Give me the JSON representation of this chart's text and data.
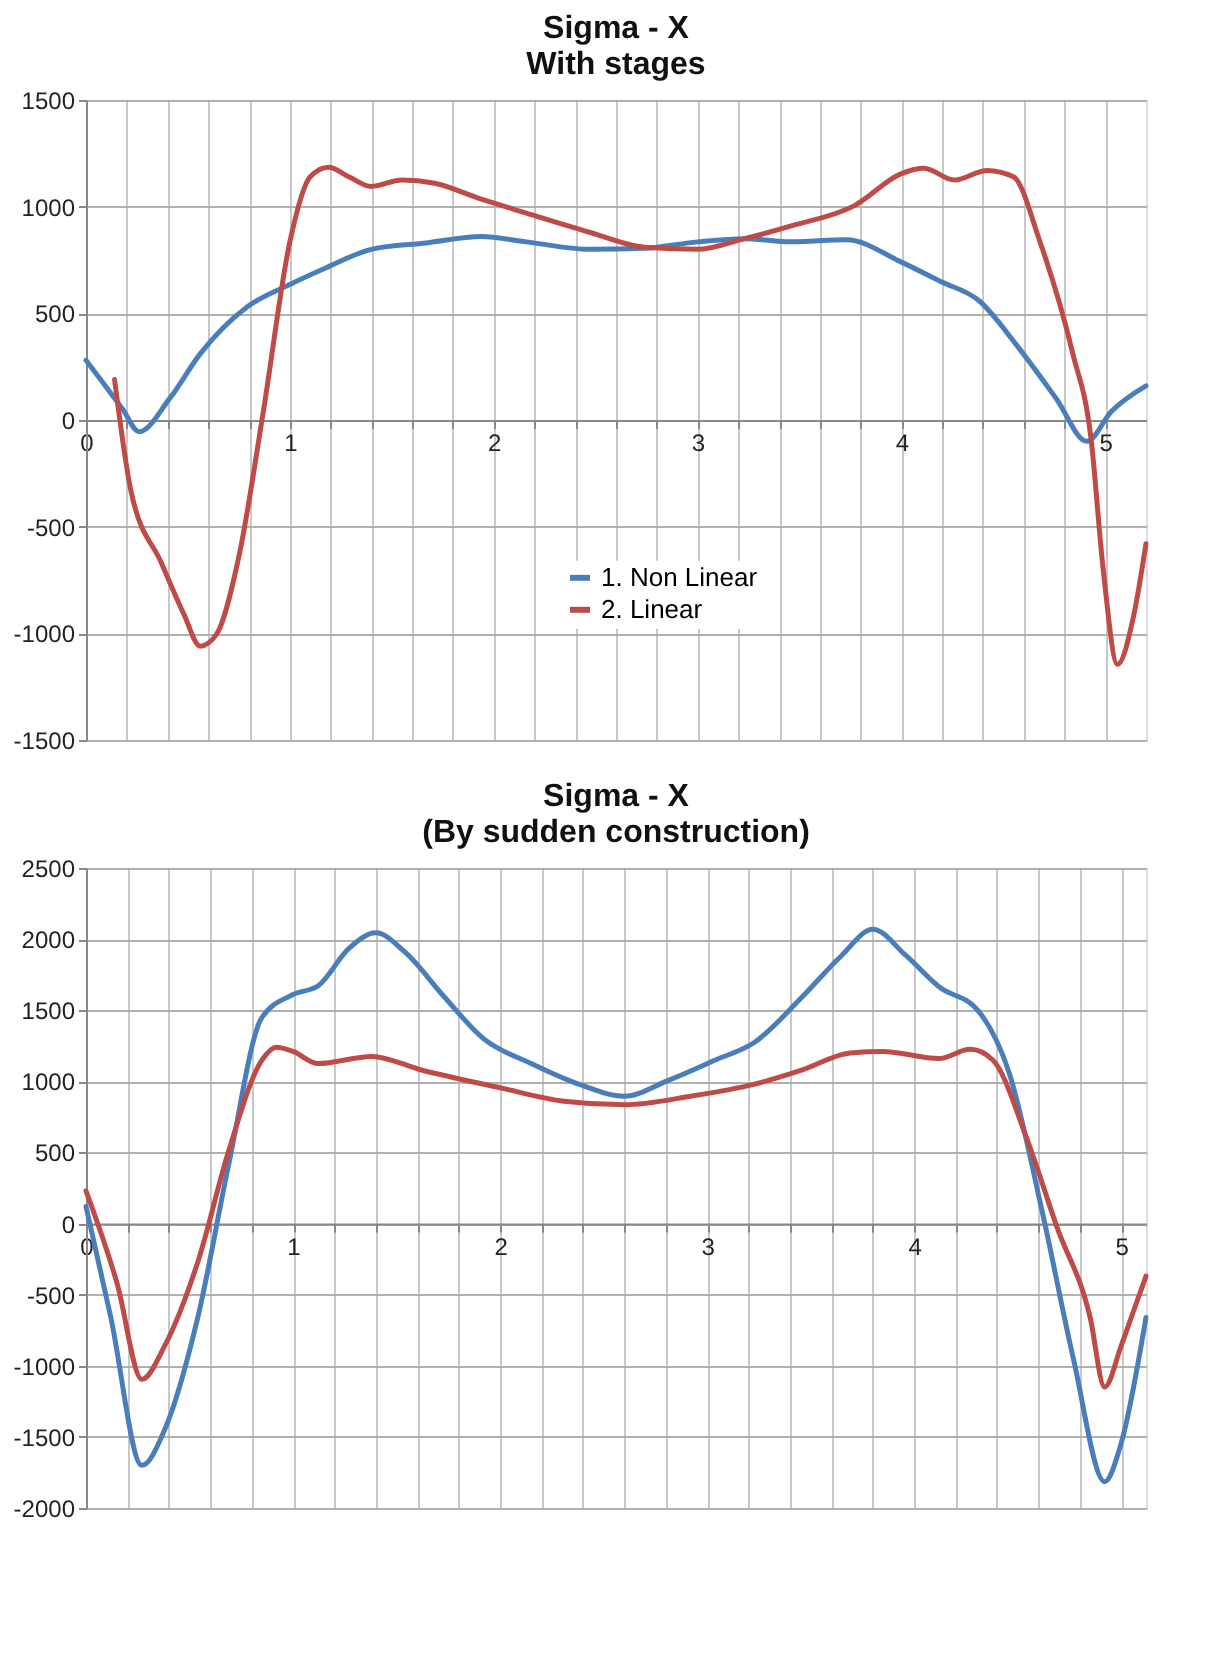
{
  "chart_data": [
    {
      "type": "line",
      "title": [
        "Sigma - X",
        "With stages"
      ],
      "xlim": [
        0,
        5.2
      ],
      "ylim": [
        -1500,
        1500
      ],
      "yticks": [
        -1500,
        -1000,
        -500,
        0,
        500,
        1000,
        1500
      ],
      "xticks": [
        0,
        {
          "value": 0.2,
          "label": null
        },
        {
          "value": 0.4,
          "label": null
        },
        {
          "value": 0.6,
          "label": null
        },
        {
          "value": 0.8,
          "label": null
        },
        1,
        {
          "value": 1.2,
          "label": null
        },
        {
          "value": 1.4,
          "label": null
        },
        {
          "value": 1.6,
          "label": null
        },
        {
          "value": 1.8,
          "label": null
        },
        2,
        {
          "value": 2.2,
          "label": null
        },
        {
          "value": 2.4,
          "label": null
        },
        {
          "value": 2.6,
          "label": null
        },
        {
          "value": 2.8,
          "label": null
        },
        3,
        {
          "value": 3.2,
          "label": null
        },
        {
          "value": 3.4,
          "label": null
        },
        {
          "value": 3.6,
          "label": null
        },
        {
          "value": 3.8,
          "label": null
        },
        4,
        {
          "value": 4.2,
          "label": null
        },
        {
          "value": 4.4,
          "label": null
        },
        {
          "value": 4.6,
          "label": null
        },
        {
          "value": 4.8,
          "label": null
        },
        5
      ],
      "grid": true,
      "legend": "bottom",
      "line_style": "solid",
      "marker": "none",
      "series": [
        {
          "name": "1. Non Linear",
          "color": "#4a7ebb",
          "x": [
            0,
            0.18,
            0.26,
            0.41,
            0.56,
            0.79,
            1.0,
            1.17,
            1.4,
            1.67,
            1.94,
            2.16,
            2.47,
            2.74,
            3.0,
            3.23,
            3.46,
            3.73,
            4.0,
            4.19,
            4.38,
            4.57,
            4.76,
            4.91,
            5.03,
            5.2
          ],
          "values": [
            280,
            50,
            -55,
            100,
            310,
            530,
            635,
            710,
            800,
            830,
            860,
            835,
            800,
            805,
            835,
            850,
            835,
            845,
            740,
            650,
            560,
            345,
            100,
            -100,
            40,
            160
          ]
        },
        {
          "name": "2. Linear",
          "color": "#be4b48",
          "x": [
            0.14,
            0.22,
            0.37,
            0.48,
            0.56,
            0.64,
            0.75,
            0.87,
            1.0,
            1.1,
            1.19,
            1.29,
            1.4,
            1.55,
            1.71,
            1.94,
            2.16,
            2.47,
            2.74,
            3.0,
            3.23,
            3.46,
            3.77,
            4.0,
            4.11,
            4.26,
            4.42,
            4.55,
            4.68,
            4.84,
            4.93,
            4.99,
            5.06,
            5.14,
            5.2
          ],
          "values": [
            190,
            -330,
            -670,
            -910,
            -1060,
            -1005,
            -640,
            40,
            835,
            1140,
            1185,
            1140,
            1095,
            1125,
            1110,
            1035,
            970,
            880,
            810,
            800,
            850,
            910,
            1005,
            1155,
            1180,
            1125,
            1170,
            1140,
            835,
            315,
            -85,
            -700,
            -1145,
            -915,
            -580
          ]
        }
      ]
    },
    {
      "type": "line",
      "title": [
        "Sigma - X",
        "(By sudden construction)"
      ],
      "xlim": [
        0,
        5.12
      ],
      "ylim": [
        -2000,
        2500
      ],
      "yticks": [
        -2000,
        -1500,
        -1000,
        -500,
        0,
        500,
        1000,
        1500,
        2000,
        2500
      ],
      "xticks": [
        0,
        {
          "value": 0.2,
          "label": null
        },
        {
          "value": 0.4,
          "label": null
        },
        {
          "value": 0.6,
          "label": null
        },
        {
          "value": 0.8,
          "label": null
        },
        1,
        {
          "value": 1.2,
          "label": null
        },
        {
          "value": 1.4,
          "label": null
        },
        {
          "value": 1.6,
          "label": null
        },
        {
          "value": 1.8,
          "label": null
        },
        2,
        {
          "value": 2.2,
          "label": null
        },
        {
          "value": 2.4,
          "label": null
        },
        {
          "value": 2.6,
          "label": null
        },
        {
          "value": 2.8,
          "label": null
        },
        3,
        {
          "value": 3.2,
          "label": null
        },
        {
          "value": 3.4,
          "label": null
        },
        {
          "value": 3.6,
          "label": null
        },
        {
          "value": 3.8,
          "label": null
        },
        4,
        {
          "value": 4.2,
          "label": null
        },
        {
          "value": 4.4,
          "label": null
        },
        {
          "value": 4.6,
          "label": null
        },
        {
          "value": 4.8,
          "label": null
        },
        5
      ],
      "grid": true,
      "legend": "bottom",
      "line_style": "solid",
      "marker": "none",
      "series": [
        {
          "name": "1. Non Linear",
          "color": "#4a7ebb",
          "x": [
            0,
            0.12,
            0.27,
            0.38,
            0.54,
            0.69,
            0.85,
            1.0,
            1.12,
            1.27,
            1.4,
            1.54,
            1.73,
            1.92,
            2.15,
            2.38,
            2.6,
            2.81,
            3.04,
            3.23,
            3.46,
            3.65,
            3.8,
            3.96,
            4.12,
            4.31,
            4.46,
            4.62,
            4.77,
            4.92,
            5.0,
            5.12
          ],
          "values": [
            120,
            -660,
            -1700,
            -1450,
            -660,
            420,
            1450,
            1610,
            1670,
            1935,
            2045,
            1910,
            1595,
            1300,
            1125,
            980,
            895,
            1005,
            1150,
            1275,
            1595,
            1885,
            2070,
            1885,
            1665,
            1495,
            1055,
            75,
            -955,
            -1815,
            -1545,
            -660
          ]
        },
        {
          "name": "2. Linear",
          "color": "#be4b48",
          "x": [
            0,
            0.15,
            0.27,
            0.38,
            0.54,
            0.69,
            0.85,
            0.92,
            1.0,
            1.12,
            1.38,
            1.62,
            2.0,
            2.31,
            2.6,
            2.92,
            3.23,
            3.46,
            3.69,
            3.85,
            4.12,
            4.27,
            4.38,
            4.54,
            4.69,
            4.85,
            4.92,
            5.0,
            5.06,
            5.12
          ],
          "values": [
            230,
            -420,
            -1095,
            -860,
            -270,
            515,
            1150,
            1240,
            1210,
            1125,
            1175,
            1080,
            955,
            860,
            835,
            895,
            980,
            1080,
            1200,
            1210,
            1160,
            1225,
            1150,
            615,
            -25,
            -660,
            -1150,
            -860,
            -615,
            -370
          ]
        }
      ]
    }
  ]
}
